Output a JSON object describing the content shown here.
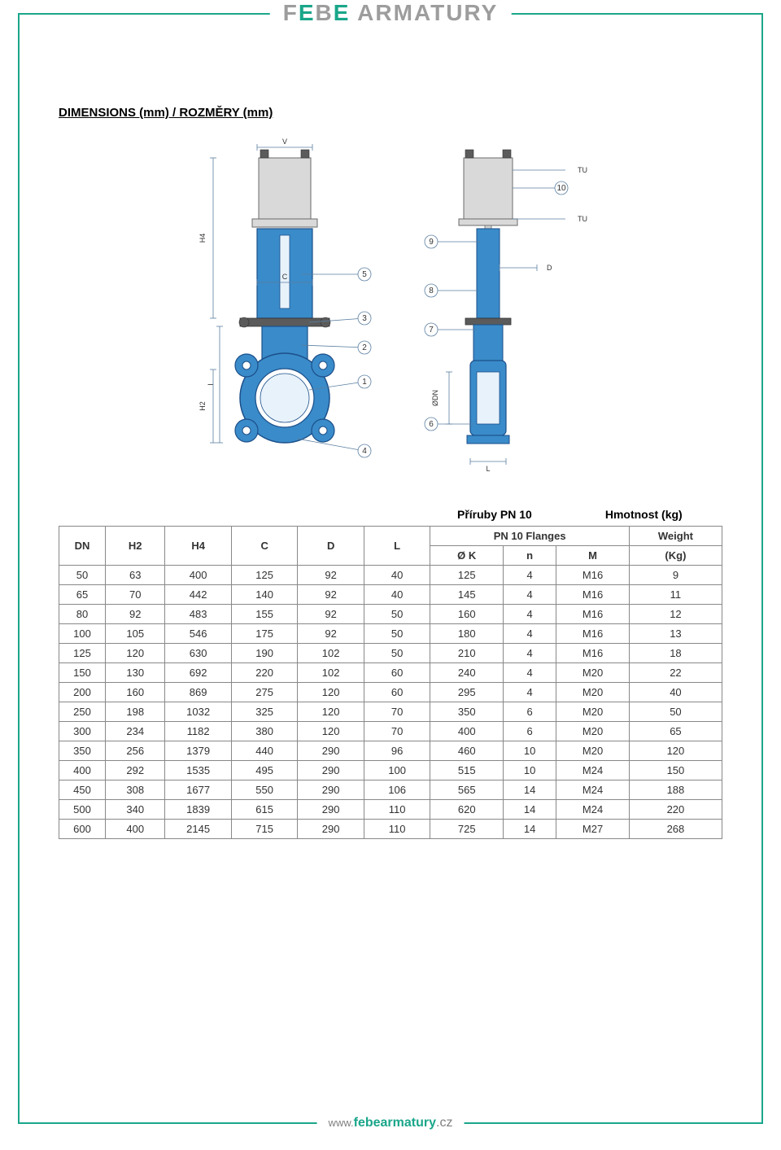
{
  "brand": {
    "text1": "F",
    "text2": "B",
    "text3": " ARMATURY",
    "accent": "E"
  },
  "section_title": "DIMENSIONS (mm) / ROZMĚRY (mm)",
  "upper_labels": {
    "flange": "Příruby PN 10",
    "weight": "Hmotnost (kg)"
  },
  "diagram": {
    "callouts": [
      "1",
      "2",
      "3",
      "4",
      "5",
      "6",
      "7",
      "8",
      "9",
      "10"
    ],
    "dim_labels": [
      "V",
      "H4",
      "I",
      "H2",
      "C",
      "D",
      "L",
      "ØDN",
      "TU"
    ],
    "colors": {
      "valve_body": "#3a8bc9",
      "valve_stroke": "#1b4f8a",
      "actuator_fill": "#d9d9d9",
      "actuator_stroke": "#6b6b6b",
      "dim_line": "#5a7ea0",
      "callout_stroke": "#5a7ea0",
      "text": "#333333",
      "bolt": "#5b5b5b"
    }
  },
  "table": {
    "headers_main": [
      "DN",
      "H2",
      "H4",
      "C",
      "D",
      "L"
    ],
    "flange_header": "PN 10 Flanges",
    "flange_sub": [
      "Ø K",
      "n",
      "M"
    ],
    "weight_header": "Weight",
    "weight_sub": "(Kg)",
    "rows": [
      [
        "50",
        "63",
        "400",
        "125",
        "92",
        "40",
        "125",
        "4",
        "M16",
        "9"
      ],
      [
        "65",
        "70",
        "442",
        "140",
        "92",
        "40",
        "145",
        "4",
        "M16",
        "11"
      ],
      [
        "80",
        "92",
        "483",
        "155",
        "92",
        "50",
        "160",
        "4",
        "M16",
        "12"
      ],
      [
        "100",
        "105",
        "546",
        "175",
        "92",
        "50",
        "180",
        "4",
        "M16",
        "13"
      ],
      [
        "125",
        "120",
        "630",
        "190",
        "102",
        "50",
        "210",
        "4",
        "M16",
        "18"
      ],
      [
        "150",
        "130",
        "692",
        "220",
        "102",
        "60",
        "240",
        "4",
        "M20",
        "22"
      ],
      [
        "200",
        "160",
        "869",
        "275",
        "120",
        "60",
        "295",
        "4",
        "M20",
        "40"
      ],
      [
        "250",
        "198",
        "1032",
        "325",
        "120",
        "70",
        "350",
        "6",
        "M20",
        "50"
      ],
      [
        "300",
        "234",
        "1182",
        "380",
        "120",
        "70",
        "400",
        "6",
        "M20",
        "65"
      ],
      [
        "350",
        "256",
        "1379",
        "440",
        "290",
        "96",
        "460",
        "10",
        "M20",
        "120"
      ],
      [
        "400",
        "292",
        "1535",
        "495",
        "290",
        "100",
        "515",
        "10",
        "M24",
        "150"
      ],
      [
        "450",
        "308",
        "1677",
        "550",
        "290",
        "106",
        "565",
        "14",
        "M24",
        "188"
      ],
      [
        "500",
        "340",
        "1839",
        "615",
        "290",
        "110",
        "620",
        "14",
        "M24",
        "220"
      ],
      [
        "600",
        "400",
        "2145",
        "715",
        "290",
        "110",
        "725",
        "14",
        "M27",
        "268"
      ]
    ],
    "col_widths_pct": [
      7,
      9,
      10,
      10,
      10,
      10,
      11,
      8,
      11,
      14
    ]
  },
  "footer": {
    "www": "www.",
    "domain": "febearmatury",
    "tld": ".cz"
  }
}
